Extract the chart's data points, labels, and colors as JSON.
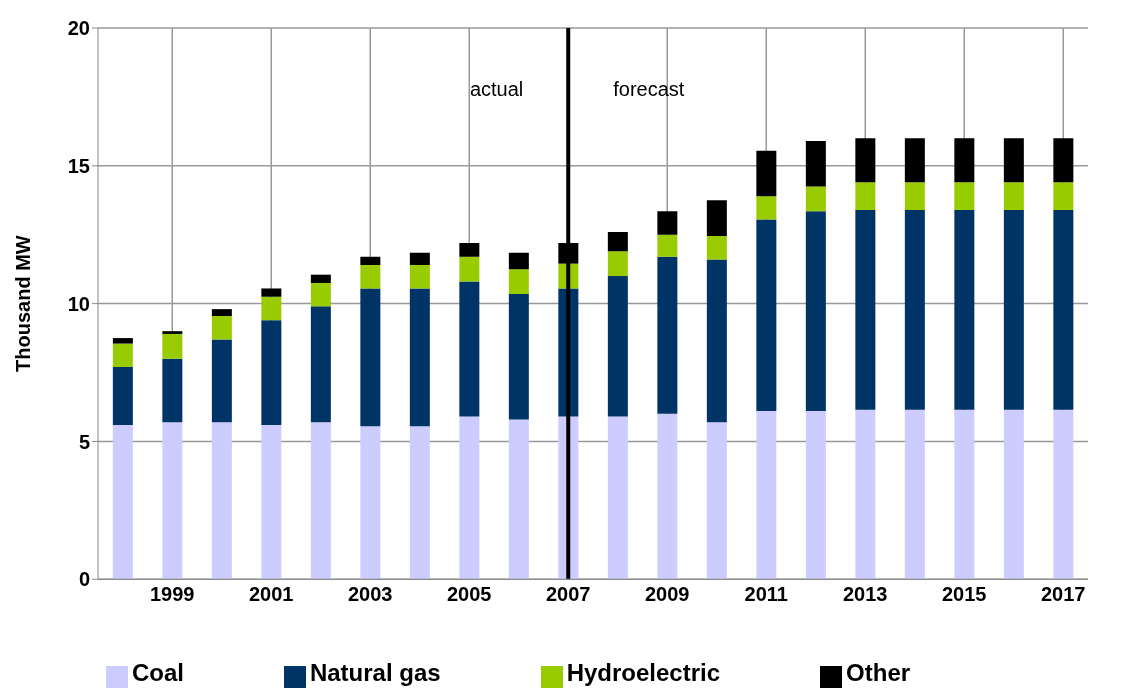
{
  "chart_data": {
    "type": "bar",
    "stacked": true,
    "ylabel": "Thousand MW",
    "categories": [
      null,
      "1999",
      null,
      "2001",
      null,
      "2003",
      null,
      "2005",
      null,
      "2007",
      null,
      "2009",
      null,
      "2011",
      null,
      "2013",
      null,
      "2015",
      null,
      "2017"
    ],
    "series": [
      {
        "name": "Coal",
        "color": "#ccccff",
        "values": [
          5.6,
          5.7,
          5.7,
          5.6,
          5.7,
          5.55,
          5.55,
          5.9,
          5.8,
          5.9,
          5.9,
          6.0,
          5.7,
          6.1,
          6.1,
          6.15,
          6.15,
          6.15,
          6.15,
          6.15
        ]
      },
      {
        "name": "Natural gas",
        "color": "#003366",
        "values": [
          2.1,
          2.3,
          3.0,
          3.8,
          4.2,
          5.0,
          5.0,
          4.9,
          4.55,
          4.65,
          5.1,
          5.7,
          5.9,
          6.95,
          7.25,
          7.25,
          7.25,
          7.25,
          7.25,
          7.25
        ]
      },
      {
        "name": "Hydroelectric",
        "color": "#99cc00",
        "values": [
          0.85,
          0.9,
          0.85,
          0.85,
          0.85,
          0.85,
          0.85,
          0.9,
          0.9,
          0.9,
          0.9,
          0.8,
          0.85,
          0.85,
          0.9,
          1.0,
          1.0,
          1.0,
          1.0,
          1.0
        ]
      },
      {
        "name": "Other",
        "color": "#000000",
        "values": [
          0.2,
          0.1,
          0.25,
          0.3,
          0.3,
          0.3,
          0.45,
          0.5,
          0.6,
          0.75,
          0.7,
          0.85,
          1.3,
          1.65,
          1.65,
          1.6,
          1.6,
          1.6,
          1.6,
          1.6
        ]
      }
    ],
    "ylim": [
      0,
      20
    ],
    "yticks": [
      0,
      5,
      10,
      15,
      20
    ],
    "grid": true,
    "legend": "bottom",
    "ref_lines": [
      {
        "axis": "x",
        "value": "2007",
        "color": "#000000"
      }
    ],
    "annotations": [
      {
        "text": "actual",
        "x": "2007",
        "y": 17.8
      },
      {
        "text": "forecast",
        "x": "2007",
        "y": 17.8
      }
    ]
  }
}
